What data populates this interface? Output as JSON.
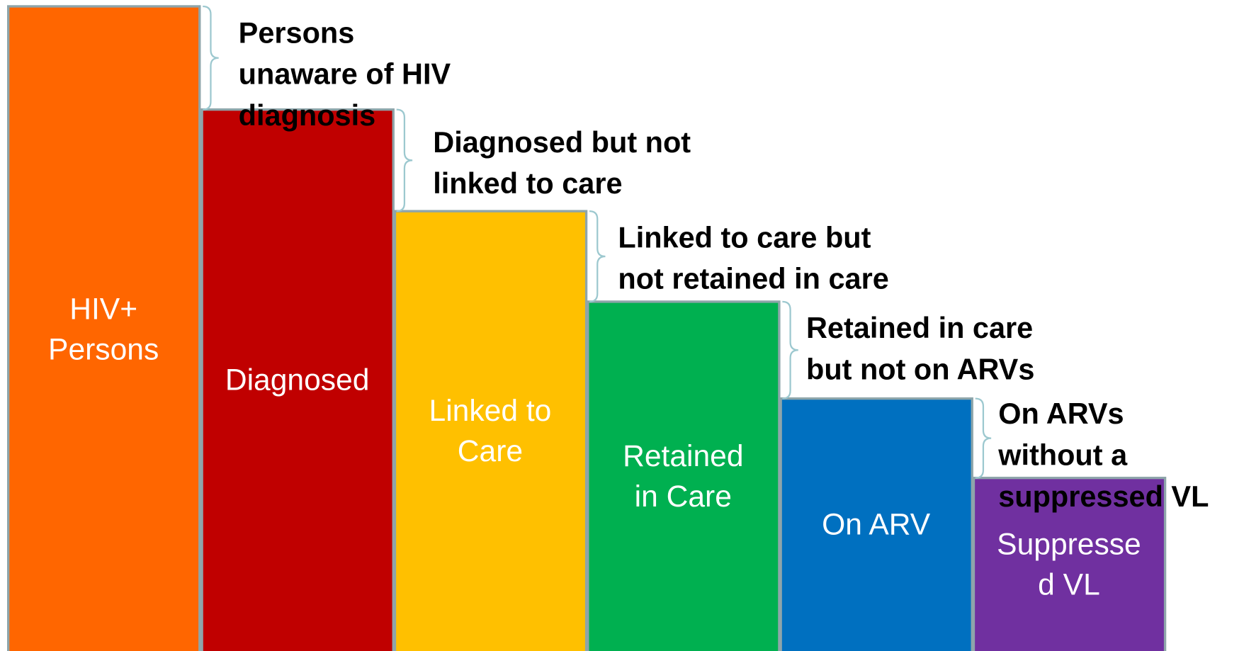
{
  "stages": [
    {
      "label_lines": [
        "HIV+",
        "Persons"
      ],
      "color": "#ff6600"
    },
    {
      "label_lines": [
        "Diagnosed"
      ],
      "color": "#c00000"
    },
    {
      "label_lines": [
        "Linked to",
        "Care"
      ],
      "color": "#ffc000"
    },
    {
      "label_lines": [
        "Retained",
        "in Care"
      ],
      "color": "#00b050"
    },
    {
      "label_lines": [
        "On ARV"
      ],
      "color": "#0070c0"
    },
    {
      "label_lines": [
        "Suppresse",
        "d VL"
      ],
      "color": "#7030a0"
    }
  ],
  "gaps": [
    {
      "label_lines": [
        "Persons",
        "unaware of HIV",
        "diagnosis"
      ]
    },
    {
      "label_lines": [
        "Diagnosed but not",
        "linked to care"
      ]
    },
    {
      "label_lines": [
        "Linked to care but",
        "not retained in care"
      ]
    },
    {
      "label_lines": [
        "Retained in care",
        "but not on ARVs"
      ]
    },
    {
      "label_lines": [
        "On ARVs",
        "without a",
        "suppressed VL"
      ]
    }
  ]
}
